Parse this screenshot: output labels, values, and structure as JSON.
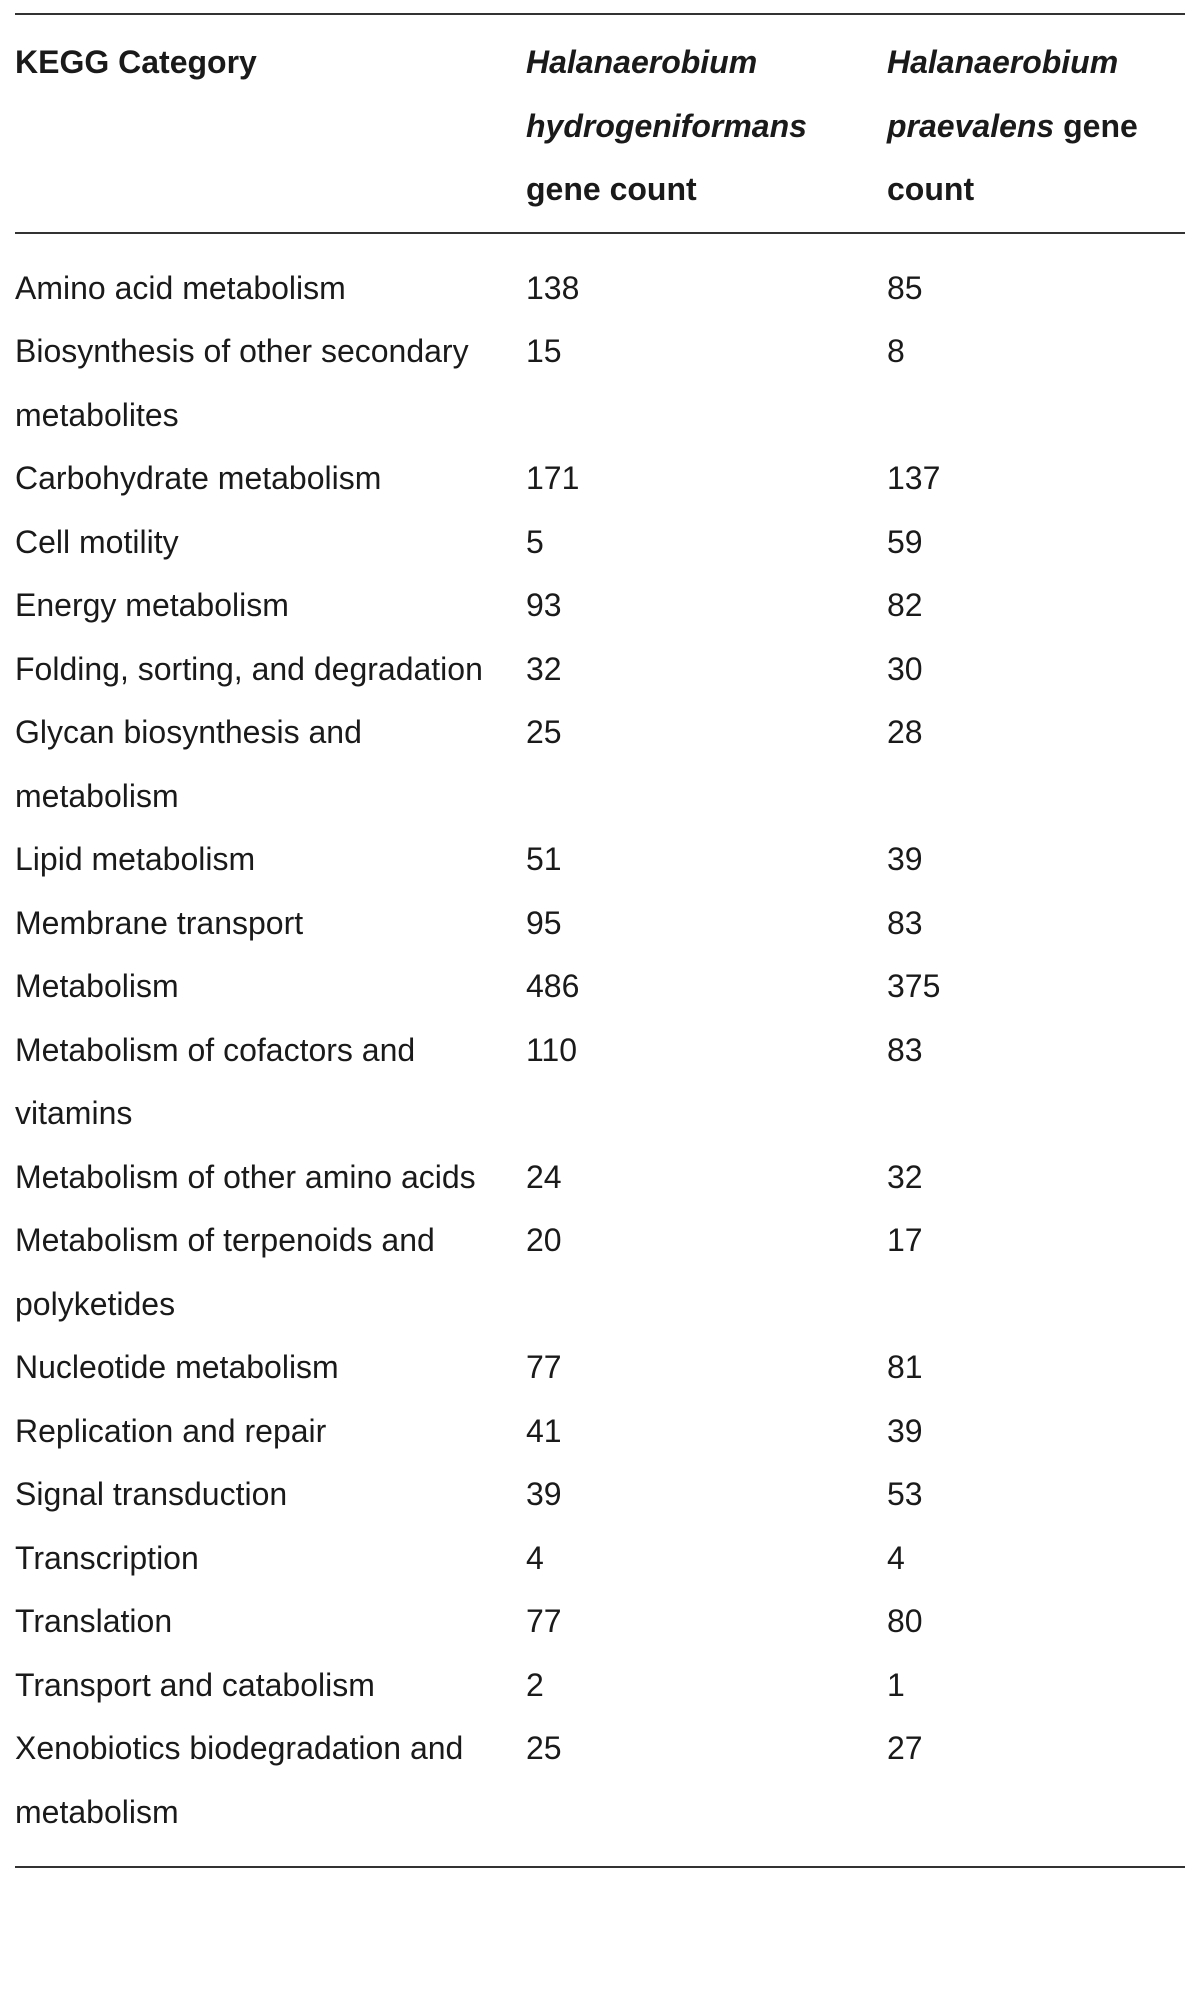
{
  "table": {
    "header": {
      "category": "KEGG Category",
      "col2_species": "Halanaerobium hydrogeniformans",
      "col2_suffix": "gene count",
      "col3_species": "Halanaerobium praevalens",
      "col3_suffix": "gene count"
    },
    "rows": [
      [
        "Amino acid metabolism",
        138,
        85
      ],
      [
        "Biosynthesis of other secondary metabolites",
        15,
        8
      ],
      [
        "Carbohydrate metabolism",
        171,
        137
      ],
      [
        "Cell motility",
        5,
        59
      ],
      [
        "Energy metabolism",
        93,
        82
      ],
      [
        "Folding, sorting, and degradation",
        32,
        30
      ],
      [
        "Glycan biosynthesis and metabolism",
        25,
        28
      ],
      [
        "Lipid metabolism",
        51,
        39
      ],
      [
        "Membrane transport",
        95,
        83
      ],
      [
        "Metabolism",
        486,
        375
      ],
      [
        "Metabolism of cofactors and vitamins",
        110,
        83
      ],
      [
        "Metabolism of other amino acids",
        24,
        32
      ],
      [
        "Metabolism of terpenoids and polyketides",
        20,
        17
      ],
      [
        "Nucleotide metabolism",
        77,
        81
      ],
      [
        "Replication and repair",
        41,
        39
      ],
      [
        "Signal transduction",
        39,
        53
      ],
      [
        "Transcription",
        4,
        4
      ],
      [
        "Translation",
        77,
        80
      ],
      [
        "Transport and catabolism",
        2,
        1
      ],
      [
        "Xenobiotics biodegradation and metabolism",
        25,
        27
      ]
    ]
  }
}
